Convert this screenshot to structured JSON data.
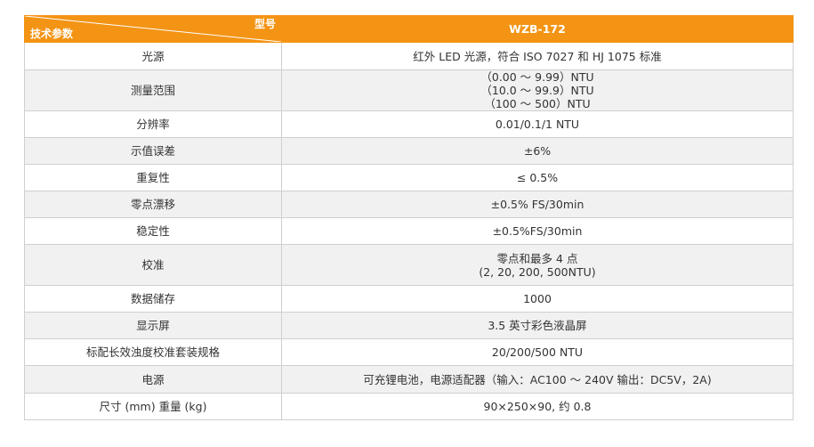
{
  "table": {
    "header": {
      "corner_top": "型号",
      "corner_bottom": "技术参数",
      "model": "WZB-172"
    },
    "rows": [
      {
        "param": "光源",
        "value": [
          "红外 LED 光源，符合 ISO 7027 和 HJ 1075 标准"
        ]
      },
      {
        "param": "测量范围",
        "value": [
          "（0.00 ～ 9.99）NTU",
          "（10.0 ～ 99.9）NTU",
          "（100 ～ 500）NTU"
        ]
      },
      {
        "param": "分辨率",
        "value": [
          "0.01/0.1/1 NTU"
        ]
      },
      {
        "param": "示值误差",
        "value": [
          "±6%"
        ]
      },
      {
        "param": "重复性",
        "value": [
          "≤ 0.5%"
        ]
      },
      {
        "param": "零点漂移",
        "value": [
          "±0.5% FS/30min"
        ]
      },
      {
        "param": "稳定性",
        "value": [
          "±0.5%FS/30min"
        ]
      },
      {
        "param": "校准",
        "value": [
          "零点和最多 4 点",
          "(2, 20, 200, 500NTU)"
        ]
      },
      {
        "param": "数据储存",
        "value": [
          "1000"
        ]
      },
      {
        "param": "显示屏",
        "value": [
          "3.5 英寸彩色液晶屏"
        ]
      },
      {
        "param": "标配长效浊度校准套装规格",
        "value": [
          "20/200/500 NTU"
        ]
      },
      {
        "param": "电源",
        "value": [
          "可充锂电池，电源适配器（输入：AC100 ～ 240V 输出：DC5V，2A)"
        ]
      },
      {
        "param": "尺寸 (mm) 重量 (kg)",
        "value": [
          "90×250×90, 约 0.8"
        ]
      }
    ]
  },
  "colors": {
    "header_bg": "#f39414",
    "alt_row_bg": "#f1f1f1",
    "border": "#cfcfcf"
  }
}
